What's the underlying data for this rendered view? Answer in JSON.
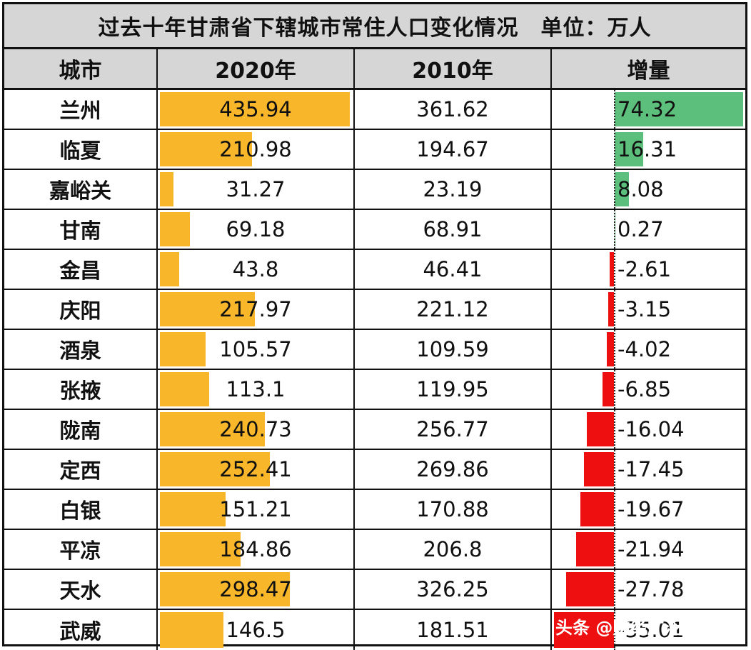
{
  "title": "过去十年甘肃省下辖城市常住人口变化情况　单位：万人",
  "headers": [
    "城市",
    "2020年",
    "2010年",
    "增量"
  ],
  "watermark": "头条 @财经广泛东栏",
  "colors": {
    "bar2020": "#f8b62a",
    "positive": "#5cbf7c",
    "negative": "#ee1010",
    "header_bg": "#d6d6d6"
  },
  "rows": [
    {
      "city": "兰州",
      "y2020": "435.94",
      "y2010": "361.62",
      "inc": "74.32"
    },
    {
      "city": "临夏",
      "y2020": "210.98",
      "y2010": "194.67",
      "inc": "16.31"
    },
    {
      "city": "嘉峪关",
      "y2020": "31.27",
      "y2010": "23.19",
      "inc": "8.08"
    },
    {
      "city": "甘南",
      "y2020": "69.18",
      "y2010": "68.91",
      "inc": "0.27"
    },
    {
      "city": "金昌",
      "y2020": "43.8",
      "y2010": "46.41",
      "inc": "-2.61"
    },
    {
      "city": "庆阳",
      "y2020": "217.97",
      "y2010": "221.12",
      "inc": "-3.15"
    },
    {
      "city": "酒泉",
      "y2020": "105.57",
      "y2010": "109.59",
      "inc": "-4.02"
    },
    {
      "city": "张掖",
      "y2020": "113.1",
      "y2010": "119.95",
      "inc": "-6.85"
    },
    {
      "city": "陇南",
      "y2020": "240.73",
      "y2010": "256.77",
      "inc": "-16.04"
    },
    {
      "city": "定西",
      "y2020": "252.41",
      "y2010": "269.86",
      "inc": "-17.45"
    },
    {
      "city": "白银",
      "y2020": "151.21",
      "y2010": "170.88",
      "inc": "-19.67"
    },
    {
      "city": "平凉",
      "y2020": "184.86",
      "y2010": "206.8",
      "inc": "-21.94"
    },
    {
      "city": "天水",
      "y2020": "298.47",
      "y2010": "326.25",
      "inc": "-27.78"
    },
    {
      "city": "武威",
      "y2020": "146.5",
      "y2010": "181.51",
      "inc": "-35.01"
    }
  ],
  "chart_data": {
    "type": "table",
    "title": "过去十年甘肃省下辖城市常住人口变化情况 单位：万人",
    "columns": [
      "城市",
      "2020年",
      "2010年",
      "增量"
    ],
    "categories": [
      "兰州",
      "临夏",
      "嘉峪关",
      "甘南",
      "金昌",
      "庆阳",
      "酒泉",
      "张掖",
      "陇南",
      "定西",
      "白银",
      "平凉",
      "天水",
      "武威"
    ],
    "series": [
      {
        "name": "2020年",
        "values": [
          435.94,
          210.98,
          31.27,
          69.18,
          43.8,
          217.97,
          105.57,
          113.1,
          240.73,
          252.41,
          151.21,
          184.86,
          298.47,
          146.5
        ]
      },
      {
        "name": "2010年",
        "values": [
          361.62,
          194.67,
          23.19,
          68.91,
          46.41,
          221.12,
          109.59,
          119.95,
          256.77,
          269.86,
          170.88,
          206.8,
          326.25,
          181.51
        ]
      },
      {
        "name": "增量",
        "values": [
          74.32,
          16.31,
          8.08,
          0.27,
          -2.61,
          -3.15,
          -4.02,
          -6.85,
          -16.04,
          -17.45,
          -19.67,
          -21.94,
          -27.78,
          -35.01
        ]
      }
    ],
    "notes": "2020年 column has in-cell orange data bars; 增量 column has green (positive) / red (negative) data bars around a dotted zero axis. Last row increment value is obscured by watermark; computed as 146.5-181.51."
  }
}
